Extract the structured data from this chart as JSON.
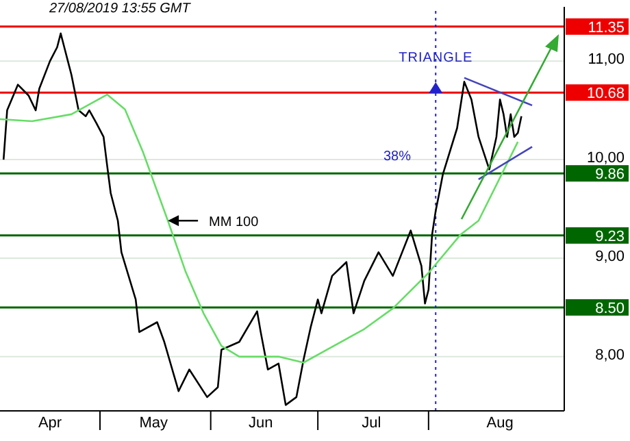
{
  "chart_data": {
    "type": "line",
    "title": "27/08/2019 13:55 GMT",
    "xlim": [
      "2019-04-03",
      "2019-09-08"
    ],
    "xticks": [
      {
        "value": "2019-04-17",
        "label": "Apr"
      },
      {
        "value": "2019-05-01",
        "label": null
      },
      {
        "value": "2019-05-16",
        "label": "May"
      },
      {
        "value": "2019-06-01",
        "label": null
      },
      {
        "value": "2019-06-15",
        "label": "Jun"
      },
      {
        "value": "2019-07-01",
        "label": null
      },
      {
        "value": "2019-07-16",
        "label": "Jul"
      },
      {
        "value": "2019-08-01",
        "label": null
      },
      {
        "value": "2019-08-21",
        "label": "Aug"
      }
    ],
    "ylim": [
      7.45,
      11.55
    ],
    "yticks": [
      {
        "value": 8,
        "label": "8,00"
      },
      {
        "value": 9,
        "label": "9,00"
      },
      {
        "value": 10,
        "label": "10,00"
      },
      {
        "value": 11,
        "label": "11,00"
      }
    ],
    "grid": "y",
    "marker": "none",
    "series": [
      {
        "color": "#000000",
        "x": [
          "2019-04-04",
          "2019-04-05",
          "2019-04-08",
          "2019-04-11",
          "2019-04-13",
          "2019-04-14",
          "2019-04-17",
          "2019-04-19",
          "2019-04-20",
          "2019-04-21",
          "2019-04-22",
          "2019-04-23",
          "2019-04-25",
          "2019-04-27",
          "2019-04-28",
          "2019-04-30",
          "2019-05-02",
          "2019-05-03",
          "2019-05-04",
          "2019-05-06",
          "2019-05-07",
          "2019-05-11",
          "2019-05-12",
          "2019-05-17",
          "2019-05-19",
          "2019-05-23",
          "2019-05-26",
          "2019-05-31",
          "2019-06-03",
          "2019-06-04",
          "2019-06-09",
          "2019-06-14",
          "2019-06-15",
          "2019-06-17",
          "2019-06-20",
          "2019-06-22",
          "2019-06-25",
          "2019-06-27",
          "2019-06-29",
          "2019-07-01",
          "2019-07-02",
          "2019-07-05",
          "2019-07-09",
          "2019-07-11",
          "2019-07-14",
          "2019-07-18",
          "2019-07-22",
          "2019-07-27",
          "2019-07-30",
          "2019-07-31",
          "2019-08-01",
          "2019-08-02",
          "2019-08-03",
          "2019-08-04",
          "2019-08-05",
          "2019-08-09",
          "2019-08-11",
          "2019-08-13",
          "2019-08-15",
          "2019-08-18",
          "2019-08-20",
          "2019-08-21",
          "2019-08-22",
          "2019-08-23",
          "2019-08-24",
          "2019-08-25",
          "2019-08-26",
          "2019-08-27"
        ],
        "values": [
          10.0,
          10.5,
          10.76,
          10.65,
          10.5,
          10.72,
          11.0,
          11.14,
          11.28,
          11.14,
          11.0,
          10.86,
          10.5,
          10.44,
          10.5,
          10.37,
          10.23,
          9.94,
          9.66,
          9.38,
          9.06,
          8.58,
          8.25,
          8.35,
          8.15,
          7.65,
          7.87,
          7.59,
          7.69,
          8.07,
          8.15,
          8.46,
          8.25,
          7.87,
          7.93,
          7.51,
          7.59,
          7.97,
          8.3,
          8.58,
          8.44,
          8.82,
          8.96,
          8.44,
          8.77,
          9.06,
          8.82,
          9.28,
          8.92,
          8.54,
          8.68,
          9.24,
          9.48,
          9.66,
          9.85,
          10.32,
          10.79,
          10.61,
          10.23,
          9.9,
          10.23,
          10.61,
          10.46,
          10.23,
          10.46,
          10.23,
          10.27,
          10.44
        ]
      },
      {
        "color": "#66dd66",
        "x": [
          "2019-04-03",
          "2019-04-12",
          "2019-04-23",
          "2019-05-03",
          "2019-05-08",
          "2019-05-13",
          "2019-05-20",
          "2019-05-25",
          "2019-05-30",
          "2019-06-04",
          "2019-06-09",
          "2019-06-20",
          "2019-06-27",
          "2019-07-02",
          "2019-07-14",
          "2019-07-22",
          "2019-08-01",
          "2019-08-10",
          "2019-08-15",
          "2019-08-26"
        ],
        "values": [
          10.41,
          10.39,
          10.46,
          10.66,
          10.51,
          10.08,
          9.38,
          8.86,
          8.44,
          8.11,
          8.0,
          8.0,
          7.94,
          8.04,
          8.28,
          8.49,
          8.85,
          9.24,
          9.38,
          10.18
        ]
      },
      {
        "color": "#4444bb",
        "x": [
          "2019-08-11",
          "2019-08-30"
        ],
        "values": [
          10.83,
          10.55
        ]
      },
      {
        "color": "#4444bb",
        "x": [
          "2019-08-15",
          "2019-08-30"
        ],
        "values": [
          9.8,
          10.13
        ]
      }
    ],
    "ref_lines": [
      {
        "axis": "y",
        "value": 11.35,
        "label": "11.35",
        "color": "#ee0000"
      },
      {
        "axis": "y",
        "value": 10.68,
        "label": "10.68",
        "color": "#ee0000"
      },
      {
        "axis": "y",
        "value": 9.86,
        "label": "9.86",
        "color": "#006600"
      },
      {
        "axis": "y",
        "value": 9.23,
        "label": "9.23",
        "color": "#006600"
      },
      {
        "axis": "y",
        "value": 8.5,
        "label": "8.50",
        "color": "#006600"
      },
      {
        "axis": "x",
        "value": "2019-08-03",
        "label": "TRIANGLE",
        "color": "#2222cc",
        "line_style": "dotted"
      }
    ],
    "annotations": [
      {
        "text": "MM 100",
        "x": "2019-05-20",
        "y": 9.38
      },
      "38%"
    ]
  }
}
